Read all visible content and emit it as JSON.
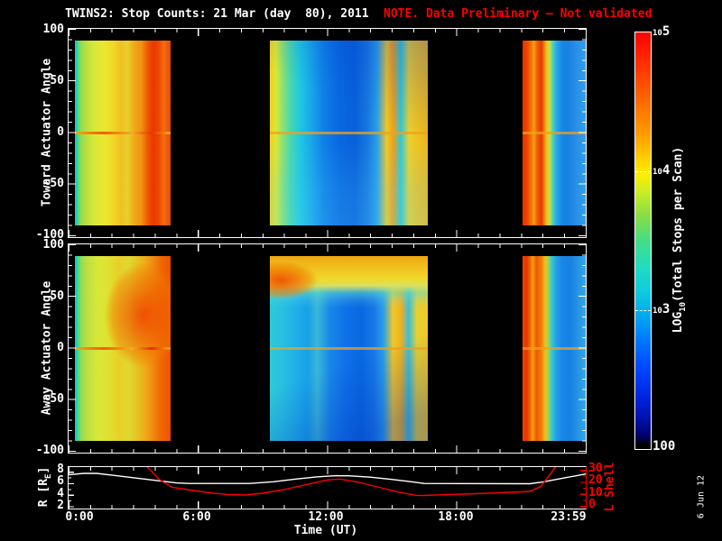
{
  "title": {
    "text": "TWINS2: Stop Counts: 21 Mar (day  80), 2011",
    "note": "NOTE. Data Preliminary – Not validated",
    "note_color": "#ff0000"
  },
  "colors": {
    "background": "#000000",
    "text": "#ffffff",
    "accent_red": "#ff0000"
  },
  "panel_toward": {
    "ylabel": "Toward Actuator Angle",
    "yticks": [
      "100",
      "50",
      "0",
      "-50",
      "-100"
    ]
  },
  "panel_away": {
    "ylabel": "Away Actuator Angle",
    "yticks": [
      "100",
      "50",
      "0",
      "-50",
      "-100"
    ]
  },
  "panel_orbit": {
    "left_axis": {
      "label_pre": "R [R",
      "label_sub": "E",
      "label_post": "]",
      "ticks": [
        "8",
        "6",
        "4",
        "2"
      ]
    },
    "right_axis": {
      "label": "L Shell",
      "ticks": [
        "30",
        "20",
        "10",
        "0"
      ],
      "color": "#ff0000"
    }
  },
  "xaxis": {
    "label": "Time (UT)",
    "ticks": [
      "0:00",
      "6:00",
      "12:00",
      "18:00",
      "23:59"
    ]
  },
  "colorbar": {
    "label_pre": "LOG",
    "label_sub": "10",
    "label_post": "(Total Stops per Scan)",
    "tick_top": {
      "base": "10",
      "exp": "5"
    },
    "tick_mid1": {
      "base": "10",
      "exp": "4"
    },
    "tick_mid2": {
      "base": "10",
      "exp": "3"
    },
    "tick_bottom": "100"
  },
  "datestamp": "6 Jun 12",
  "chart_data": [
    {
      "type": "heatmap",
      "panel": "Toward Actuator Angle",
      "x_unit": "hours UT",
      "x_range": [
        0,
        24
      ],
      "y_unit": "degrees",
      "y_range": [
        -100,
        100
      ],
      "data_y_extent": [
        -90,
        90
      ],
      "value": "LOG10(Total Stops per Scan)",
      "value_range": [
        100,
        100000
      ],
      "zero_line": "orange horizontal artifact band at 0 degrees",
      "segments": [
        {
          "t_start": 0.3,
          "t_end": 4.75,
          "pattern": "green-yellow vertical striping, cyan stripe at left edge, heavy orange-red striping in right third"
        },
        {
          "t_start": 9.35,
          "t_end": 16.68,
          "pattern": "yellow left edge fading through green-cyan into deep blue core, orange-yellow stripe cluster near right edge"
        },
        {
          "t_start": 21.05,
          "t_end": 24.0,
          "pattern": "red-orange striping on left third, light blue out to right edge"
        }
      ]
    },
    {
      "type": "heatmap",
      "panel": "Away Actuator Angle",
      "x_unit": "hours UT",
      "x_range": [
        0,
        24
      ],
      "y_unit": "degrees",
      "y_range": [
        -100,
        100
      ],
      "data_y_extent": [
        -90,
        90
      ],
      "value": "LOG10(Total Stops per Scan)",
      "value_range": [
        100,
        100000
      ],
      "zero_line": "orange horizontal artifact band at 0 degrees",
      "segments": [
        {
          "t_start": 0.3,
          "t_end": 4.75,
          "pattern": "green-yellow striping with orange-red blob in upper right, cyan stripe at left edge"
        },
        {
          "t_start": 9.35,
          "t_end": 16.68,
          "pattern": "yellow-orange band across top (+60..+90 deg) with red-orange blob at upper left, cyan-to-blue body, yellow stripes at right edge"
        },
        {
          "t_start": 21.05,
          "t_end": 24.0,
          "pattern": "red-orange striping on left third, blue out to right edge"
        }
      ]
    },
    {
      "type": "line",
      "name": "R [RE]",
      "color": "#ffffff",
      "x_unit": "hours UT",
      "axis_ticks": [
        8,
        6,
        4,
        2
      ],
      "ylim": [
        1.6,
        8.8
      ],
      "points": [
        [
          0,
          7.45
        ],
        [
          0.7,
          7.7
        ],
        [
          1.3,
          7.7
        ],
        [
          2,
          7.4
        ],
        [
          3,
          6.95
        ],
        [
          4,
          6.5
        ],
        [
          5,
          6.05
        ],
        [
          5.6,
          5.95
        ],
        [
          8.4,
          5.95
        ],
        [
          9.5,
          6.25
        ],
        [
          10.5,
          6.7
        ],
        [
          11.5,
          7.1
        ],
        [
          12.4,
          7.3
        ],
        [
          13,
          7.28
        ],
        [
          14,
          7.05
        ],
        [
          15,
          6.65
        ],
        [
          16,
          6.2
        ],
        [
          16.5,
          5.95
        ],
        [
          21.4,
          5.9
        ],
        [
          22,
          6.2
        ],
        [
          23,
          6.9
        ],
        [
          24,
          7.6
        ]
      ]
    },
    {
      "type": "line",
      "name": "L Shell",
      "color": "#ff0000",
      "x_unit": "hours UT",
      "axis_ticks": [
        30,
        20,
        10,
        0
      ],
      "ylim": [
        -2.25,
        32.25
      ],
      "points": [
        [
          3.65,
          32.5
        ],
        [
          4.2,
          22
        ],
        [
          4.8,
          15.5
        ],
        [
          5.5,
          13.5
        ],
        [
          6.5,
          11
        ],
        [
          7.4,
          9.3
        ],
        [
          8.2,
          9.0
        ],
        [
          9,
          10.5
        ],
        [
          10,
          13.5
        ],
        [
          11,
          17.5
        ],
        [
          12,
          21.5
        ],
        [
          12.6,
          22.3
        ],
        [
          13.5,
          19.5
        ],
        [
          14.5,
          15
        ],
        [
          15.3,
          11.5
        ],
        [
          16.1,
          8.8
        ],
        [
          16.5,
          8.6
        ],
        [
          18,
          9.6
        ],
        [
          19.5,
          10.5
        ],
        [
          21,
          11.6
        ],
        [
          21.4,
          12
        ],
        [
          21.9,
          16
        ],
        [
          22.3,
          25
        ],
        [
          22.6,
          32.5
        ]
      ]
    }
  ]
}
